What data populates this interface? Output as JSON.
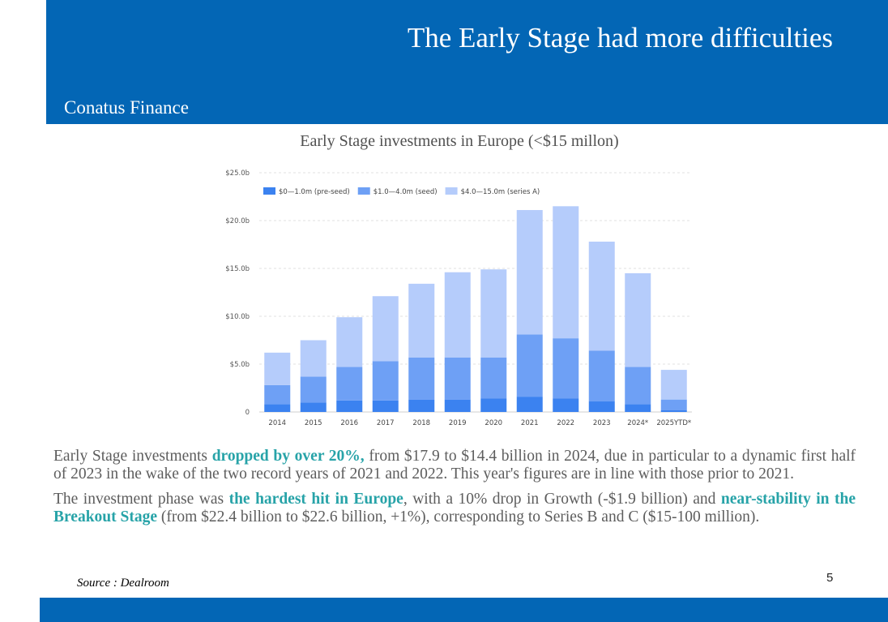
{
  "header": {
    "title": "The Early Stage had more difficulties",
    "brand": "Conatus Finance"
  },
  "chart_caption": "Early Stage investments in Europe (<$15 millon)",
  "chart_data": {
    "type": "bar",
    "stacked": true,
    "title": "",
    "categories": [
      "2014",
      "2015",
      "2016",
      "2017",
      "2018",
      "2019",
      "2020",
      "2021",
      "2022",
      "2023",
      "2024*",
      "2025YTD*"
    ],
    "series": [
      {
        "name": "$0—1.0m (pre-seed)",
        "color": "#3b82f0",
        "values": [
          0.8,
          1.0,
          1.2,
          1.2,
          1.3,
          1.3,
          1.4,
          1.6,
          1.4,
          1.1,
          0.8,
          0.2
        ]
      },
      {
        "name": "$1.0—4.0m (seed)",
        "color": "#6ea0f5",
        "values": [
          2.0,
          2.7,
          3.5,
          4.1,
          4.4,
          4.4,
          4.3,
          6.5,
          6.3,
          5.3,
          3.9,
          1.1
        ]
      },
      {
        "name": "$4.0—15.0m (series A)",
        "color": "#b5ccfb",
        "values": [
          3.4,
          3.8,
          5.2,
          6.8,
          7.7,
          8.9,
          9.2,
          13.0,
          13.8,
          11.4,
          9.8,
          3.1
        ]
      }
    ],
    "y_ticks": [
      "0",
      "$5.0b",
      "$10.0b",
      "$15.0b",
      "$20.0b",
      "$25.0b"
    ],
    "ylim": [
      0,
      25
    ],
    "grid": true,
    "legend_position": "top-left"
  },
  "body": {
    "p1_pre": "Early Stage investments ",
    "p1_hl": "dropped by over 20%,",
    "p1_post": " from $17.9 to $14.4 billion in 2024, due in particular to a dynamic first half of 2023 in the wake of the two record years of 2021 and 2022. This year's figures are in line with those prior to 2021.",
    "p2_pre": "The investment phase was ",
    "p2_hl1": "the hardest hit in Europe",
    "p2_mid": ", with a 10% drop in Growth (-$1.9 billion) and ",
    "p2_hl2": "near-stability in the Breakout Stage",
    "p2_post": " (from $22.4 billion to $22.6 billion, +1%), corresponding to Series B and C ($15-100 million)."
  },
  "source": "Source : Dealroom",
  "page_number": "5",
  "colors": {
    "brand_blue": "#0366b5",
    "highlight_teal": "#27a3a8"
  }
}
